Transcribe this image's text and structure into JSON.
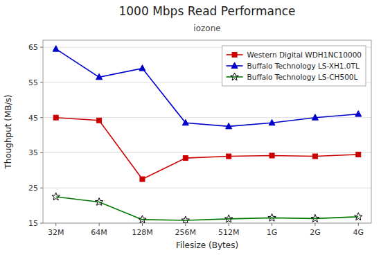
{
  "chart_data": {
    "type": "line",
    "title": "1000 Mbps Read Performance",
    "subtitle": "iozone",
    "x_label": "Filesize (Bytes)",
    "y_label": "Thoughput (MB/s)",
    "categories": [
      "32M",
      "64M",
      "128M",
      "256M",
      "512M",
      "1G",
      "2G",
      "4G"
    ],
    "ylim": [
      15.0,
      67.0
    ],
    "yticks": [
      15,
      25,
      35,
      45,
      55,
      65
    ],
    "grid": true,
    "legend": "upper-right",
    "series": [
      {
        "name": "Western Digital WDH1NC10000",
        "color": "#cc0000",
        "marker": "square",
        "values": [
          45.0,
          44.2,
          27.5,
          33.5,
          34.0,
          34.2,
          34.0,
          34.5
        ]
      },
      {
        "name": "Buffalo Technology LS-XH1.0TL",
        "color": "#0000cc",
        "marker": "triangle",
        "values": [
          64.5,
          56.5,
          59.0,
          43.5,
          42.5,
          43.5,
          45.0,
          46.0
        ]
      },
      {
        "name": "Buffalo Technology LS-CH500L",
        "color": "#007700",
        "marker": "star",
        "values": [
          22.5,
          21.0,
          16.0,
          15.8,
          16.2,
          16.5,
          16.3,
          16.8
        ]
      }
    ]
  }
}
